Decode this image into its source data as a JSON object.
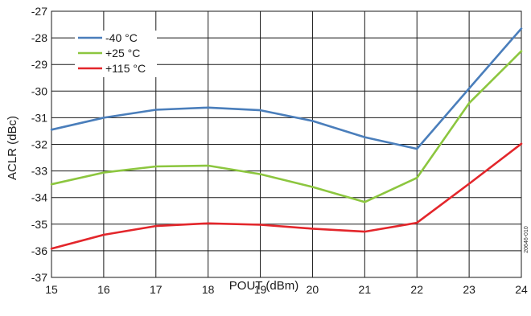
{
  "chart_data": {
    "type": "line",
    "xlabel": "POUT (dBm)",
    "ylabel": "ACLR (dBc)",
    "xlim": [
      15,
      24
    ],
    "ylim": [
      -37,
      -27
    ],
    "x_ticks": [
      "15",
      "16",
      "17",
      "18",
      "19",
      "20",
      "21",
      "22",
      "23",
      "24"
    ],
    "y_ticks": [
      "-27",
      "-28",
      "-29",
      "-30",
      "-31",
      "-32",
      "-33",
      "-34",
      "-35",
      "-36",
      "-37"
    ],
    "grid": true,
    "legend_position": "top-left",
    "figure_id": "20646-010",
    "x": [
      15,
      16,
      17,
      18,
      19,
      20,
      21,
      22,
      23,
      24
    ],
    "series": [
      {
        "name": "-40 °C",
        "color": "#4a7ebb",
        "values": [
          -31.45,
          -31.0,
          -30.7,
          -30.62,
          -30.72,
          -31.12,
          -31.73,
          -32.17,
          -29.9,
          -27.65
        ]
      },
      {
        "name": "+25 °C",
        "color": "#8cc63f",
        "values": [
          -33.5,
          -33.06,
          -32.83,
          -32.8,
          -33.12,
          -33.6,
          -34.17,
          -33.26,
          -30.45,
          -28.5
        ]
      },
      {
        "name": "+115 °C",
        "color": "#e3262b",
        "values": [
          -35.92,
          -35.4,
          -35.07,
          -34.97,
          -35.02,
          -35.17,
          -35.28,
          -34.95,
          -33.48,
          -31.98
        ]
      }
    ]
  }
}
